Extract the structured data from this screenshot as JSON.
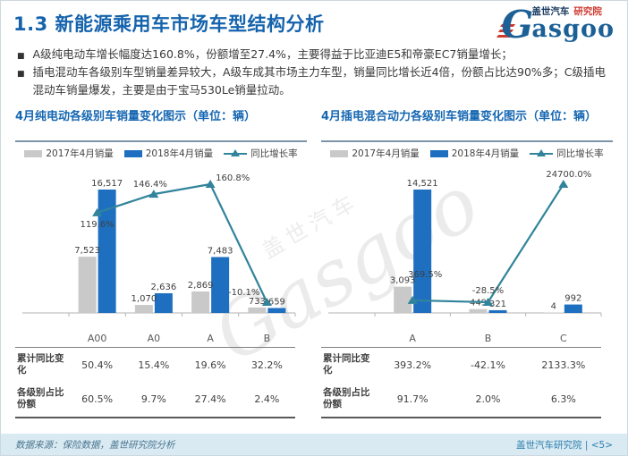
{
  "slide": {
    "title": "1.3 新能源乘用车市场车型结构分析",
    "logo": {
      "brand_g": "G",
      "brand_rest": "asgoo",
      "brand_cn": "盖世汽车",
      "brand_dept": "研究院"
    },
    "bullets": [
      "A级纯电动车增长幅度达160.8%，份额增至27.4%，主要得益于比亚迪E5和帝豪EC7销量增长；",
      "插电混动车各级别车型销量差异较大，A级车成其市场主力车型，销量同比增长近4倍，份额占比达90%多；C级插电混动车销量爆发，主要是由于宝马530Le销量拉动。"
    ],
    "watermark": {
      "en": "Gasgoo",
      "cn": "盖世汽车"
    },
    "footer": {
      "source": "数据来源：保险数据，盖世研究院分析",
      "right": "盖世汽车研究院 | <5>"
    }
  },
  "colors": {
    "title_blue": "#1563ad",
    "bar_2017": "#c9c9c9",
    "bar_2018": "#1e6fc0",
    "growth_line": "#31849b",
    "axis": "#b3b3b3",
    "label_text": "#3f3f3f",
    "footer_bg": "#d9eaf2",
    "logo_red": "#cf3a30"
  },
  "chart_data": [
    {
      "type": "bar",
      "title": "4月纯电动各级别车销量变化图示（单位：辆）",
      "unit": "辆",
      "legend_position": "top",
      "grid": false,
      "categories": [
        "A00",
        "A0",
        "A",
        "B"
      ],
      "series": [
        {
          "name": "2017年4月销量",
          "kind": "bar",
          "values": [
            7523,
            1070,
            2869,
            733
          ],
          "labels": [
            "7,523",
            "1,070",
            "2,869",
            "733"
          ]
        },
        {
          "name": "2018年4月销量",
          "kind": "bar",
          "values": [
            16517,
            2636,
            7483,
            659
          ],
          "labels": [
            "16,517",
            "2,636",
            "7,483",
            "659"
          ]
        },
        {
          "name": "同比增长率",
          "kind": "line",
          "values": [
            119.6,
            146.4,
            160.8,
            -10.1
          ],
          "labels": [
            "119.6%",
            "146.4%",
            "160.8%",
            "-10.1%"
          ]
        }
      ],
      "summary_rows": [
        {
          "label": "累计同比变化",
          "values": [
            "50.4%",
            "15.4%",
            "19.6%",
            "32.2%"
          ]
        },
        {
          "label": "各级别占比份额",
          "values": [
            "60.5%",
            "9.7%",
            "27.4%",
            "2.4%"
          ]
        }
      ]
    },
    {
      "type": "bar",
      "title": "4月插电混合动力各级别车销量变化图示（单位：辆）",
      "unit": "辆",
      "legend_position": "top",
      "grid": false,
      "categories": [
        "A",
        "B",
        "C"
      ],
      "series": [
        {
          "name": "2017年4月销量",
          "kind": "bar",
          "values": [
            3093,
            449,
            4
          ],
          "labels": [
            "3,093",
            "449",
            "4"
          ]
        },
        {
          "name": "2018年4月销量",
          "kind": "bar",
          "values": [
            14521,
            321,
            992
          ],
          "labels": [
            "14,521",
            "321",
            "992"
          ]
        },
        {
          "name": "同比增长率",
          "kind": "line",
          "values": [
            369.5,
            -28.5,
            24700.0
          ],
          "labels": [
            "369.5%",
            "-28.5%",
            "24700.0%"
          ]
        }
      ],
      "summary_rows": [
        {
          "label": "累计同比变化",
          "values": [
            "393.2%",
            "-42.1%",
            "2133.3%"
          ]
        },
        {
          "label": "各级别占比份额",
          "values": [
            "91.7%",
            "2.0%",
            "6.3%"
          ]
        }
      ]
    }
  ]
}
